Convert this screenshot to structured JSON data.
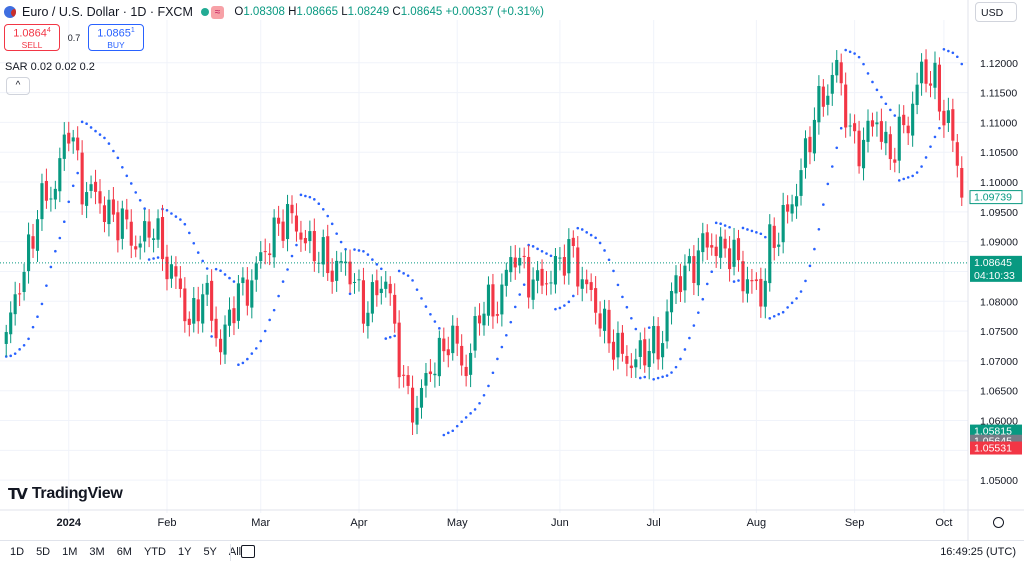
{
  "header": {
    "symbol": "Euro / U.S. Dollar · 1D · FXCM",
    "market_badge": "≈",
    "open_label": "O",
    "open": "1.08308",
    "high_label": "H",
    "high": "1.08665",
    "low_label": "L",
    "low": "1.08249",
    "close_label": "C",
    "close": "1.08645",
    "change": "+0.00337 (+0.31%)"
  },
  "trade": {
    "sell_price": "1.0864",
    "sell_sup": "4",
    "sell_label": "SELL",
    "spread": "0.7",
    "buy_price": "1.0865",
    "buy_sup": "1",
    "buy_label": "BUY"
  },
  "indicator": {
    "label": "SAR 0.02 0.02 0.2",
    "collapse_glyph": "^"
  },
  "currency": {
    "label": "USD",
    "chevron": "⌄"
  },
  "brand": {
    "mark": "𝗧𝗩",
    "name": "TradingView"
  },
  "toolbar": {
    "ranges": [
      "1D",
      "5D",
      "1M",
      "3M",
      "6M",
      "YTD",
      "1Y",
      "5Y",
      "All"
    ],
    "clock": "16:49:25 (UTC)"
  },
  "colors": {
    "up": "#089981",
    "down": "#f23645",
    "sar": "#2962ff",
    "grid": "#f0f3fa",
    "last": "#089981"
  },
  "price_badges": [
    {
      "label": "1.09739",
      "price": 1.09739,
      "style": "outline-green"
    },
    {
      "label": "1.08645",
      "sub": "04:10:33",
      "price": 1.08645,
      "style": "green"
    },
    {
      "label": "1.05815",
      "price": 1.05815,
      "style": "green"
    },
    {
      "label": "1.05645",
      "price": 1.05645,
      "style": "grey"
    },
    {
      "label": "1.05531",
      "price": 1.05531,
      "style": "red"
    }
  ],
  "chart_data": {
    "type": "candlestick",
    "symbol": "EURUSD",
    "interval": "1D",
    "ylim": [
      1.045,
      1.1255
    ],
    "y_ticks": [
      1.05,
      1.055,
      1.06,
      1.065,
      1.07,
      1.075,
      1.08,
      1.085,
      1.09,
      1.095,
      1.1,
      1.105,
      1.11,
      1.115,
      1.12
    ],
    "x_ticks": [
      "2024",
      "Feb",
      "Mar",
      "Apr",
      "May",
      "Jun",
      "Jul",
      "Aug",
      "Sep",
      "Oct"
    ],
    "x_tick_index": [
      14,
      36,
      57,
      79,
      101,
      124,
      145,
      168,
      190,
      210
    ],
    "num_bars": 215,
    "waypoints": [
      [
        0,
        1.0735
      ],
      [
        2,
        1.08
      ],
      [
        7,
        1.0945
      ],
      [
        11,
        1.1002
      ],
      [
        14,
        1.109
      ],
      [
        17,
        1.1
      ],
      [
        20,
        1.097
      ],
      [
        24,
        1.0945
      ],
      [
        29,
        1.09
      ],
      [
        33,
        1.092
      ],
      [
        37,
        1.085
      ],
      [
        41,
        1.0765
      ],
      [
        44,
        1.0815
      ],
      [
        48,
        1.073
      ],
      [
        52,
        1.081
      ],
      [
        56,
        1.085
      ],
      [
        61,
        1.0935
      ],
      [
        65,
        1.093
      ],
      [
        69,
        1.088
      ],
      [
        73,
        1.086
      ],
      [
        77,
        1.085
      ],
      [
        81,
        1.078
      ],
      [
        85,
        1.085
      ],
      [
        89,
        1.065
      ],
      [
        92,
        1.0625
      ],
      [
        96,
        1.07
      ],
      [
        99,
        1.074
      ],
      [
        103,
        1.069
      ],
      [
        106,
        1.078
      ],
      [
        110,
        1.08
      ],
      [
        114,
        1.088
      ],
      [
        119,
        1.082
      ],
      [
        123,
        1.086
      ],
      [
        127,
        1.088
      ],
      [
        131,
        1.08
      ],
      [
        134,
        1.076
      ],
      [
        138,
        1.07
      ],
      [
        142,
        1.071
      ],
      [
        146,
        1.0725
      ],
      [
        150,
        1.083
      ],
      [
        154,
        1.087
      ],
      [
        158,
        1.09
      ],
      [
        162,
        1.088
      ],
      [
        166,
        1.084
      ],
      [
        169,
        1.08
      ],
      [
        171,
        1.09
      ],
      [
        175,
        1.094
      ],
      [
        179,
        1.105
      ],
      [
        183,
        1.115
      ],
      [
        186,
        1.119
      ],
      [
        189,
        1.108
      ],
      [
        192,
        1.106
      ],
      [
        195,
        1.111
      ],
      [
        198,
        1.104
      ],
      [
        201,
        1.109
      ],
      [
        205,
        1.118
      ],
      [
        208,
        1.117
      ],
      [
        211,
        1.109
      ],
      [
        213,
        1.103
      ],
      [
        214,
        1.0974
      ]
    ],
    "sar": {
      "step": 0.02,
      "increment": 0.02,
      "max": 0.2
    }
  }
}
